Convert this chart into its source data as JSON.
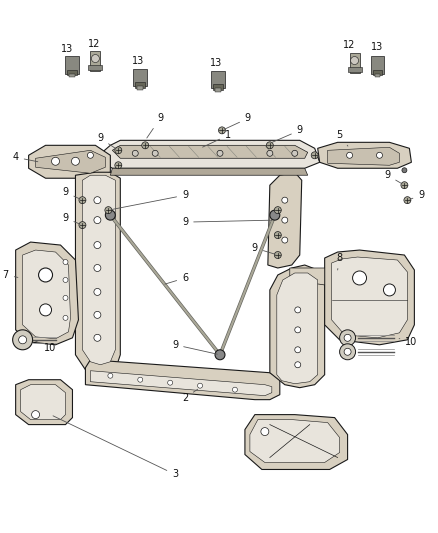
{
  "bg_color": "#ffffff",
  "part_color": "#d8d0c0",
  "part_color2": "#c8c0b0",
  "part_dark": "#a09080",
  "line_color": "#1a1a1a",
  "label_color": "#111111",
  "gray_light": "#e8e4dc",
  "gray_mid": "#b0a898",
  "figsize": [
    4.38,
    5.33
  ],
  "dpi": 100
}
